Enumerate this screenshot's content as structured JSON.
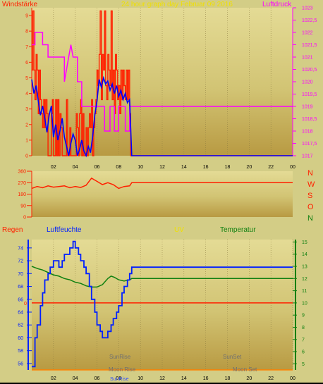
{
  "header": {
    "wind_label": "Windstärke",
    "title": "24 hour graph day   Februar 09 2016",
    "pressure_label": "Luftdruck"
  },
  "bottom_header": {
    "rain": "Regen",
    "humidity": "Luftfeuchte",
    "uv": "UV",
    "temperature": "Temperatur"
  },
  "compass": [
    "N",
    "W",
    "S",
    "O",
    "N"
  ],
  "annotations": {
    "sunrise": "SunRise",
    "sunset": "SunSet",
    "moonrise": "Moon Rise",
    "moonset": "Moon Set",
    "sunrise_bottom": "SunRise"
  },
  "colors": {
    "wind": "#ff2000",
    "wind_avg": "#0000ff",
    "pressure": "#ff00ff",
    "direction": "#ff2000",
    "humidity": "#0020ff",
    "temperature": "#108010",
    "rain": "#ff2000"
  },
  "chart_data": [
    {
      "name": "wind-pressure",
      "type": "line",
      "x_ticks": [
        "02",
        "04",
        "06",
        "08",
        "10",
        "12",
        "14",
        "16",
        "18",
        "20",
        "22",
        "00"
      ],
      "xlim": [
        0,
        24
      ],
      "left_axis": {
        "label": "Windstärke",
        "ticks": [
          "0",
          "1",
          "2",
          "3",
          "4",
          "5",
          "6",
          "7",
          "8",
          "9"
        ],
        "ylim": [
          0,
          9.5
        ]
      },
      "right_axis": {
        "label": "Luftdruck",
        "ticks": [
          "1017",
          "1017,5",
          "1018",
          "1018,5",
          "1019",
          "1019,5",
          "1020",
          "1020,5",
          "1021",
          "1021,5",
          "1022",
          "1022,5",
          "1023"
        ],
        "ylim": [
          1017,
          1023
        ]
      },
      "series": [
        {
          "name": "wind_gust",
          "axis": "left",
          "x": [
            0,
            0.1,
            0.2,
            0.3,
            0.4,
            0.5,
            0.6,
            0.7,
            0.8,
            0.9,
            1.0,
            1.1,
            1.2,
            1.3,
            1.4,
            1.5,
            1.6,
            1.7,
            1.8,
            1.9,
            2.0,
            2.1,
            2.2,
            2.3,
            2.4,
            2.5,
            2.6,
            2.7,
            2.8,
            2.9,
            3.0,
            3.1,
            3.2,
            3.3,
            3.4,
            3.5,
            3.6,
            3.7,
            3.8,
            3.9,
            4.0,
            4.1,
            4.2,
            4.3,
            4.4,
            4.5,
            4.6,
            4.7,
            4.8,
            4.9,
            5.0,
            5.1,
            5.2,
            5.3,
            5.4,
            5.5,
            5.6,
            5.7,
            5.8,
            5.9,
            6.0,
            6.1,
            6.2,
            6.3,
            6.4,
            6.5,
            6.6,
            6.7,
            6.8,
            6.9,
            7.0,
            7.1,
            7.2,
            7.3,
            7.4,
            7.5,
            7.6,
            7.7,
            7.8,
            7.9,
            8.0,
            8.1,
            8.2,
            8.3,
            8.4,
            8.5,
            8.6,
            8.7,
            8.8,
            8.9,
            9.0,
            9.1,
            9.3,
            24
          ],
          "y": [
            5.5,
            9.3,
            5.5,
            3.6,
            6.5,
            5.5,
            2.7,
            5.5,
            3.6,
            2.7,
            1.8,
            3.6,
            1.8,
            3.6,
            2.7,
            0,
            0,
            0,
            2.7,
            3.6,
            0,
            0,
            3.6,
            0,
            3.6,
            0,
            2.7,
            1.8,
            0,
            0,
            0,
            0,
            3.6,
            0,
            0,
            1.8,
            0,
            0,
            0,
            0,
            0,
            2.7,
            1.8,
            0,
            2.7,
            3.6,
            0,
            2.7,
            0,
            0,
            1.8,
            0,
            1.8,
            2.7,
            1.8,
            3.6,
            0,
            1.8,
            2.7,
            3.6,
            5.5,
            4.5,
            6.5,
            9.3,
            3.6,
            6.5,
            5.5,
            9.3,
            4.5,
            3.6,
            6.5,
            5.5,
            4.5,
            9.3,
            3.6,
            5.5,
            2.7,
            6.5,
            5.5,
            3.6,
            4.5,
            2.7,
            5.5,
            3.6,
            5.5,
            4.5,
            3.6,
            5.5,
            3.6,
            5.5,
            2.7,
            0,
            0,
            0
          ]
        },
        {
          "name": "wind_avg",
          "axis": "left",
          "x": [
            0,
            0.2,
            0.4,
            0.6,
            0.8,
            1.0,
            1.2,
            1.4,
            1.6,
            1.8,
            2.0,
            2.2,
            2.4,
            2.6,
            2.8,
            3.0,
            3.2,
            3.4,
            3.6,
            3.8,
            4.0,
            4.2,
            4.4,
            4.6,
            4.8,
            5.0,
            5.2,
            5.4,
            5.6,
            5.8,
            6.0,
            6.2,
            6.4,
            6.6,
            6.8,
            7.0,
            7.2,
            7.4,
            7.6,
            7.8,
            8.0,
            8.2,
            8.4,
            8.6,
            8.8,
            9.0,
            9.2,
            24
          ],
          "y": [
            4.9,
            4.0,
            4.5,
            3.5,
            2.6,
            3.2,
            2.4,
            1.5,
            2.6,
            3.2,
            1.2,
            2.0,
            1.0,
            1.6,
            2.4,
            1.2,
            0.6,
            0,
            0.8,
            1.4,
            1.0,
            0,
            0.4,
            1.0,
            0.3,
            0,
            0.6,
            0.2,
            1.2,
            2.6,
            3.5,
            4.9,
            4.4,
            5.0,
            4.6,
            4.8,
            4.2,
            4.6,
            4.0,
            4.5,
            3.8,
            4.2,
            3.6,
            4.0,
            3.4,
            3.6,
            0,
            0
          ]
        },
        {
          "name": "pressure",
          "axis": "right",
          "x": [
            0,
            0.3,
            0.3,
            1.0,
            1.0,
            1.5,
            1.5,
            3.0,
            3.0,
            3.4,
            3.6,
            3.8,
            4.0,
            4.2,
            4.2,
            4.6,
            4.6,
            5.2,
            5.2,
            6.2,
            6.2,
            6.7,
            6.7,
            7.2,
            7.2,
            7.6,
            7.6,
            8.0,
            8.0,
            8.6,
            8.6,
            9.0,
            9.0,
            24
          ],
          "y": [
            1021.5,
            1021.5,
            1022,
            1022,
            1021.5,
            1021.5,
            1021,
            1021,
            1020,
            1021,
            1021.5,
            1021,
            1021,
            1021,
            1020,
            1020,
            1019,
            1019,
            1019,
            1019,
            1019,
            1019,
            1018,
            1018,
            1019,
            1019,
            1018,
            1018,
            1019,
            1019,
            1018,
            1018,
            1019,
            1019
          ]
        }
      ]
    },
    {
      "name": "wind-direction",
      "type": "line",
      "xlim": [
        0,
        24
      ],
      "y_ticks": [
        "0",
        "90",
        "180",
        "270",
        "360"
      ],
      "ylim": [
        0,
        360
      ],
      "series": [
        {
          "name": "direction",
          "x": [
            0,
            0.5,
            1.0,
            1.5,
            2.0,
            2.5,
            3.0,
            3.5,
            4.0,
            4.5,
            5.0,
            5.5,
            6.0,
            6.5,
            7.0,
            7.5,
            8.0,
            8.5,
            9.0,
            9.2,
            24
          ],
          "y": [
            225,
            240,
            230,
            245,
            235,
            240,
            245,
            230,
            240,
            232,
            250,
            305,
            280,
            255,
            270,
            255,
            225,
            240,
            245,
            270,
            270
          ]
        }
      ]
    },
    {
      "name": "humidity-temperature",
      "type": "line",
      "x_ticks": [
        "02",
        "04",
        "06",
        "08",
        "10",
        "12",
        "14",
        "16",
        "18",
        "20",
        "22",
        "00"
      ],
      "xlim": [
        0,
        24
      ],
      "left_axis": {
        "label": "Luftfeuchte",
        "ticks": [
          "56",
          "58",
          "60",
          "62",
          "64",
          "66",
          "68",
          "70",
          "72",
          "74"
        ],
        "ylim": [
          55,
          75.3
        ]
      },
      "right_axis": {
        "label": "Temperatur",
        "ticks": [
          "5",
          "6",
          "7",
          "8",
          "9",
          "10",
          "11",
          "12",
          "13",
          "14",
          "15"
        ],
        "ylim": [
          4.5,
          15.2
        ]
      },
      "rain_axis": {
        "label": "Regen",
        "tick": "0"
      },
      "series": [
        {
          "name": "humidity",
          "axis": "left",
          "x": [
            0,
            0.3,
            0.5,
            0.8,
            1.0,
            1.2,
            1.5,
            1.7,
            2.0,
            2.2,
            2.5,
            2.8,
            3.0,
            3.3,
            3.5,
            3.8,
            4.0,
            4.3,
            4.5,
            4.8,
            5.0,
            5.3,
            5.5,
            5.8,
            6.0,
            6.3,
            6.5,
            6.8,
            7.0,
            7.3,
            7.5,
            7.8,
            8.0,
            8.3,
            8.5,
            8.8,
            9.0,
            9.2,
            24
          ],
          "y": [
            55.5,
            60,
            62,
            65,
            67,
            69,
            70,
            71,
            72,
            72,
            71,
            72,
            73,
            73,
            74,
            75,
            74,
            73,
            72,
            71,
            70,
            68,
            66,
            64,
            62,
            61,
            60,
            60,
            61,
            62,
            63,
            64,
            65,
            67,
            68,
            69,
            70,
            71,
            71
          ]
        },
        {
          "name": "temperature",
          "axis": "right",
          "x": [
            0,
            0.3,
            0.6,
            1.0,
            1.5,
            2.0,
            2.5,
            3.0,
            3.5,
            4.0,
            4.5,
            5.0,
            5.5,
            6.0,
            6.5,
            7.0,
            7.3,
            7.6,
            8.0,
            8.5,
            9.0,
            9.2,
            24
          ],
          "y": [
            13,
            12.9,
            12.8,
            12.7,
            12.5,
            12.3,
            12.2,
            12.0,
            11.9,
            11.7,
            11.6,
            11.4,
            11.3,
            11.3,
            11.5,
            12.0,
            12.2,
            12.1,
            11.9,
            11.8,
            11.9,
            12,
            12
          ]
        },
        {
          "name": "rain",
          "axis": "rain",
          "x": [
            0,
            24
          ],
          "y": [
            0,
            0
          ]
        }
      ]
    }
  ]
}
